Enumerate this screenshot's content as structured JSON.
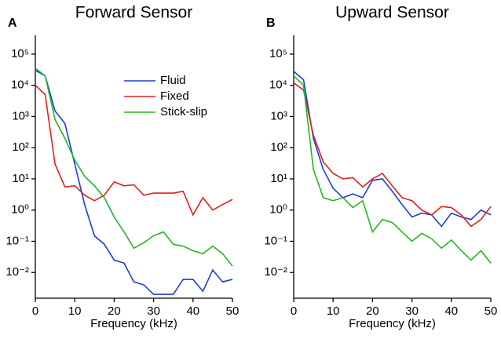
{
  "chart_data": [
    {
      "type": "line",
      "panel": "A",
      "title": "Forward Sensor",
      "xlabel": "Frequency (kHz)",
      "x": [
        0,
        2.5,
        5,
        7.5,
        10,
        12.5,
        15,
        17.5,
        20,
        22.5,
        25,
        27.5,
        30,
        32.5,
        35,
        37.5,
        40,
        42.5,
        45,
        47.5,
        50
      ],
      "series": [
        {
          "name": "Fluid",
          "color": "#1a3fd6",
          "values": [
            30000,
            20000,
            1500,
            600,
            30,
            1.5,
            0.15,
            0.08,
            0.025,
            0.02,
            0.005,
            0.004,
            0.002,
            0.002,
            0.002,
            0.006,
            0.006,
            0.0025,
            0.012,
            0.005,
            0.006
          ]
        },
        {
          "name": "Fixed",
          "color": "#e0201b",
          "values": [
            10000,
            5000,
            30,
            5.5,
            6,
            3,
            2,
            3,
            8,
            6,
            6.5,
            3,
            3.5,
            3.5,
            3.5,
            4,
            0.7,
            2.5,
            1,
            1.5,
            2.2
          ]
        },
        {
          "name": "Stick-slip",
          "color": "#22b822",
          "values": [
            35000,
            20000,
            800,
            200,
            40,
            12,
            6,
            2.5,
            0.6,
            0.2,
            0.06,
            0.09,
            0.15,
            0.2,
            0.08,
            0.07,
            0.05,
            0.04,
            0.07,
            0.04,
            0.016
          ]
        }
      ],
      "xlim": [
        0,
        50
      ],
      "xticks": [
        0,
        10,
        20,
        30,
        40,
        50
      ],
      "ylim": [
        0.0015,
        400000
      ],
      "log_y": true,
      "legend": "upper right",
      "yticks": [
        {
          "value": 0.01,
          "label": "10⁻²"
        },
        {
          "value": 0.1,
          "label": "10⁻¹"
        },
        {
          "value": 1,
          "label": "10⁰"
        },
        {
          "value": 10,
          "label": "10¹"
        },
        {
          "value": 100,
          "label": "10²"
        },
        {
          "value": 1000,
          "label": "10³"
        },
        {
          "value": 10000,
          "label": "10⁴"
        },
        {
          "value": 100000,
          "label": "10⁵"
        }
      ]
    },
    {
      "type": "line",
      "panel": "B",
      "title": "Upward Sensor",
      "xlabel": "Frequency (kHz)",
      "x": [
        0,
        2.5,
        5,
        7.5,
        10,
        12.5,
        15,
        17.5,
        20,
        22.5,
        25,
        27.5,
        30,
        32.5,
        35,
        37.5,
        40,
        42.5,
        45,
        47.5,
        50
      ],
      "series": [
        {
          "color": "#1a3fd6",
          "values": [
            28000,
            15000,
            200,
            20,
            5,
            2.5,
            3.3,
            2.5,
            9,
            10,
            4,
            1.5,
            0.6,
            0.8,
            0.7,
            0.3,
            0.8,
            0.6,
            0.5,
            1,
            0.7
          ]
        },
        {
          "color": "#e0201b",
          "values": [
            12000,
            7000,
            250,
            35,
            15,
            10,
            11,
            5.5,
            10,
            15,
            6,
            2.5,
            2,
            1,
            0.7,
            1.3,
            1.2,
            0.7,
            0.3,
            0.5,
            1.3
          ]
        },
        {
          "color": "#22b822",
          "values": [
            20000,
            10000,
            20,
            2.5,
            2,
            2.5,
            1.2,
            2,
            0.2,
            0.5,
            0.4,
            0.2,
            0.1,
            0.18,
            0.12,
            0.06,
            0.11,
            0.05,
            0.025,
            0.05,
            0.02
          ]
        }
      ],
      "xlim": [
        0,
        50
      ],
      "xticks": [
        0,
        10,
        20,
        30,
        40,
        50
      ],
      "ylim": [
        0.0015,
        400000
      ],
      "log_y": true,
      "yticks": [
        {
          "value": 0.01,
          "label": "10⁻²"
        },
        {
          "value": 0.1,
          "label": "10⁻¹"
        },
        {
          "value": 1,
          "label": "10⁰"
        },
        {
          "value": 10,
          "label": "10¹"
        },
        {
          "value": 100,
          "label": "10²"
        },
        {
          "value": 1000,
          "label": "10³"
        },
        {
          "value": 10000,
          "label": "10⁴"
        },
        {
          "value": 100000,
          "label": "10⁵"
        }
      ]
    }
  ]
}
